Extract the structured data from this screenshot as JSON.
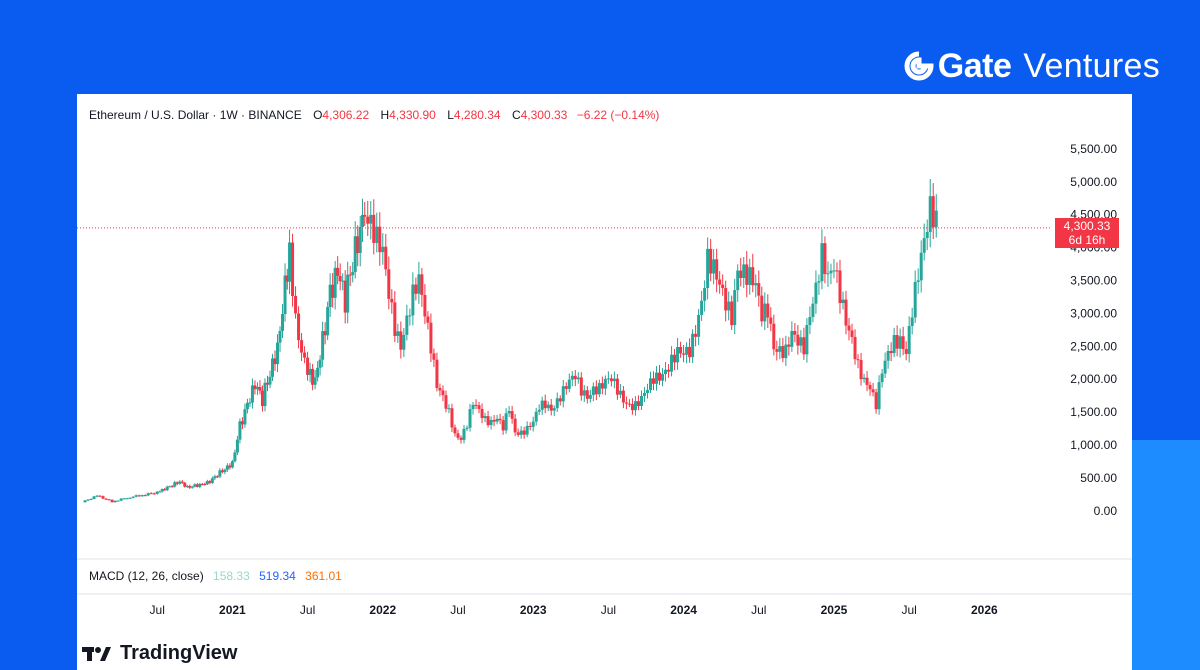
{
  "brand": {
    "name": "Gate",
    "sub": "Ventures"
  },
  "legend": {
    "symbol": "Ethereum / U.S. Dollar · 1W · BINANCE",
    "o_label": "O",
    "o_val": "4,306.22",
    "h_label": "H",
    "h_val": "4,330.90",
    "l_label": "L",
    "l_val": "4,280.34",
    "c_label": "C",
    "c_val": "4,300.33",
    "change": "−6.22 (−0.14%)"
  },
  "macd": {
    "label": "MACD (12, 26, close)",
    "v1": "158.33",
    "v2": "519.34",
    "v3": "361.01"
  },
  "price_tag": {
    "price": "4,300.33",
    "countdown": "6d 16h"
  },
  "watermark": "TradingView",
  "colors": {
    "up": "#26a69a",
    "down": "#f23645",
    "background": "#0a5cf0"
  },
  "chart_data": {
    "type": "candlestick",
    "title": "Ethereum / U.S. Dollar · 1W · BINANCE",
    "xlabel": "",
    "ylabel": "",
    "ylim": [
      -200,
      5650
    ],
    "xlim": [
      2020.0,
      2026.35
    ],
    "y_ticks": [
      "0.00",
      "500.00",
      "1,000.00",
      "1,500.00",
      "2,000.00",
      "2,500.00",
      "3,000.00",
      "3,500.00",
      "4,000.00",
      "4,500.00",
      "5,000.00",
      "5,500.00"
    ],
    "y_tick_values": [
      0,
      500,
      1000,
      1500,
      2000,
      2500,
      3000,
      3500,
      4000,
      4500,
      5000,
      5500
    ],
    "x_ticks": [
      {
        "label": "Jul",
        "t": 2020.5,
        "year": false
      },
      {
        "label": "2021",
        "t": 2021.0,
        "year": true
      },
      {
        "label": "Jul",
        "t": 2021.5,
        "year": false
      },
      {
        "label": "2022",
        "t": 2022.0,
        "year": true
      },
      {
        "label": "Jul",
        "t": 2022.5,
        "year": false
      },
      {
        "label": "2023",
        "t": 2023.0,
        "year": true
      },
      {
        "label": "Jul",
        "t": 2023.5,
        "year": false
      },
      {
        "label": "2024",
        "t": 2024.0,
        "year": true
      },
      {
        "label": "Jul",
        "t": 2024.5,
        "year": false
      },
      {
        "label": "2025",
        "t": 2025.0,
        "year": true
      },
      {
        "label": "Jul",
        "t": 2025.5,
        "year": false
      },
      {
        "label": "2026",
        "t": 2026.0,
        "year": true
      }
    ],
    "last_close": 4300.33,
    "closes": [
      [
        2020.0,
        130
      ],
      [
        2020.1,
        230
      ],
      [
        2020.2,
        140
      ],
      [
        2020.3,
        200
      ],
      [
        2020.4,
        240
      ],
      [
        2020.5,
        280
      ],
      [
        2020.55,
        330
      ],
      [
        2020.6,
        390
      ],
      [
        2020.65,
        450
      ],
      [
        2020.7,
        360
      ],
      [
        2020.75,
        380
      ],
      [
        2020.8,
        400
      ],
      [
        2020.85,
        440
      ],
      [
        2020.9,
        550
      ],
      [
        2020.95,
        640
      ],
      [
        2021.0,
        730
      ],
      [
        2021.05,
        1300
      ],
      [
        2021.1,
        1600
      ],
      [
        2021.15,
        1900
      ],
      [
        2021.2,
        1700
      ],
      [
        2021.25,
        2100
      ],
      [
        2021.3,
        2500
      ],
      [
        2021.35,
        3400
      ],
      [
        2021.38,
        4000
      ],
      [
        2021.42,
        2800
      ],
      [
        2021.46,
        2300
      ],
      [
        2021.5,
        2100
      ],
      [
        2021.55,
        2000
      ],
      [
        2021.6,
        2600
      ],
      [
        2021.65,
        3300
      ],
      [
        2021.7,
        3600
      ],
      [
        2021.75,
        3200
      ],
      [
        2021.8,
        3800
      ],
      [
        2021.85,
        4300
      ],
      [
        2021.88,
        4700
      ],
      [
        2021.92,
        4500
      ],
      [
        2021.96,
        4100
      ],
      [
        2022.0,
        3800
      ],
      [
        2022.04,
        3200
      ],
      [
        2022.08,
        2800
      ],
      [
        2022.12,
        2600
      ],
      [
        2022.16,
        3000
      ],
      [
        2022.2,
        3300
      ],
      [
        2022.24,
        3400
      ],
      [
        2022.28,
        2900
      ],
      [
        2022.32,
        2500
      ],
      [
        2022.36,
        2000
      ],
      [
        2022.4,
        1800
      ],
      [
        2022.44,
        1500
      ],
      [
        2022.48,
        1100
      ],
      [
        2022.52,
        1050
      ],
      [
        2022.56,
        1300
      ],
      [
        2022.6,
        1700
      ],
      [
        2022.64,
        1600
      ],
      [
        2022.68,
        1400
      ],
      [
        2022.72,
        1300
      ],
      [
        2022.76,
        1350
      ],
      [
        2022.8,
        1250
      ],
      [
        2022.84,
        1600
      ],
      [
        2022.88,
        1250
      ],
      [
        2022.92,
        1200
      ],
      [
        2022.96,
        1220
      ],
      [
        2023.0,
        1300
      ],
      [
        2023.04,
        1550
      ],
      [
        2023.08,
        1650
      ],
      [
        2023.12,
        1600
      ],
      [
        2023.16,
        1700
      ],
      [
        2023.2,
        1800
      ],
      [
        2023.24,
        1900
      ],
      [
        2023.28,
        2000
      ],
      [
        2023.32,
        1850
      ],
      [
        2023.36,
        1800
      ],
      [
        2023.4,
        1900
      ],
      [
        2023.44,
        1850
      ],
      [
        2023.48,
        1900
      ],
      [
        2023.52,
        1950
      ],
      [
        2023.56,
        1850
      ],
      [
        2023.6,
        1750
      ],
      [
        2023.64,
        1650
      ],
      [
        2023.68,
        1600
      ],
      [
        2023.72,
        1650
      ],
      [
        2023.76,
        1800
      ],
      [
        2023.8,
        2000
      ],
      [
        2023.84,
        2100
      ],
      [
        2023.88,
        2200
      ],
      [
        2023.92,
        2300
      ],
      [
        2023.96,
        2350
      ],
      [
        2024.0,
        2300
      ],
      [
        2024.04,
        2400
      ],
      [
        2024.08,
        2800
      ],
      [
        2024.12,
        3300
      ],
      [
        2024.16,
        3900
      ],
      [
        2024.2,
        3600
      ],
      [
        2024.24,
        3300
      ],
      [
        2024.28,
        3100
      ],
      [
        2024.32,
        3000
      ],
      [
        2024.36,
        3800
      ],
      [
        2024.4,
        3700
      ],
      [
        2024.44,
        3500
      ],
      [
        2024.48,
        3300
      ],
      [
        2024.52,
        2900
      ],
      [
        2024.56,
        3100
      ],
      [
        2024.6,
        2600
      ],
      [
        2024.64,
        2500
      ],
      [
        2024.68,
        2400
      ],
      [
        2024.72,
        2600
      ],
      [
        2024.76,
        2500
      ],
      [
        2024.8,
        2500
      ],
      [
        2024.84,
        3100
      ],
      [
        2024.88,
        3500
      ],
      [
        2024.92,
        3900
      ],
      [
        2024.96,
        3400
      ],
      [
        2025.0,
        3600
      ],
      [
        2025.04,
        3300
      ],
      [
        2025.08,
        3000
      ],
      [
        2025.12,
        2700
      ],
      [
        2025.16,
        2200
      ],
      [
        2025.2,
        1900
      ],
      [
        2025.24,
        1800
      ],
      [
        2025.28,
        1600
      ],
      [
        2025.32,
        2200
      ],
      [
        2025.36,
        2500
      ],
      [
        2025.4,
        2600
      ],
      [
        2025.44,
        2500
      ],
      [
        2025.48,
        2300
      ],
      [
        2025.52,
        3000
      ],
      [
        2025.56,
        3700
      ],
      [
        2025.6,
        4300
      ],
      [
        2025.64,
        4700
      ],
      [
        2025.68,
        4300
      ]
    ]
  }
}
